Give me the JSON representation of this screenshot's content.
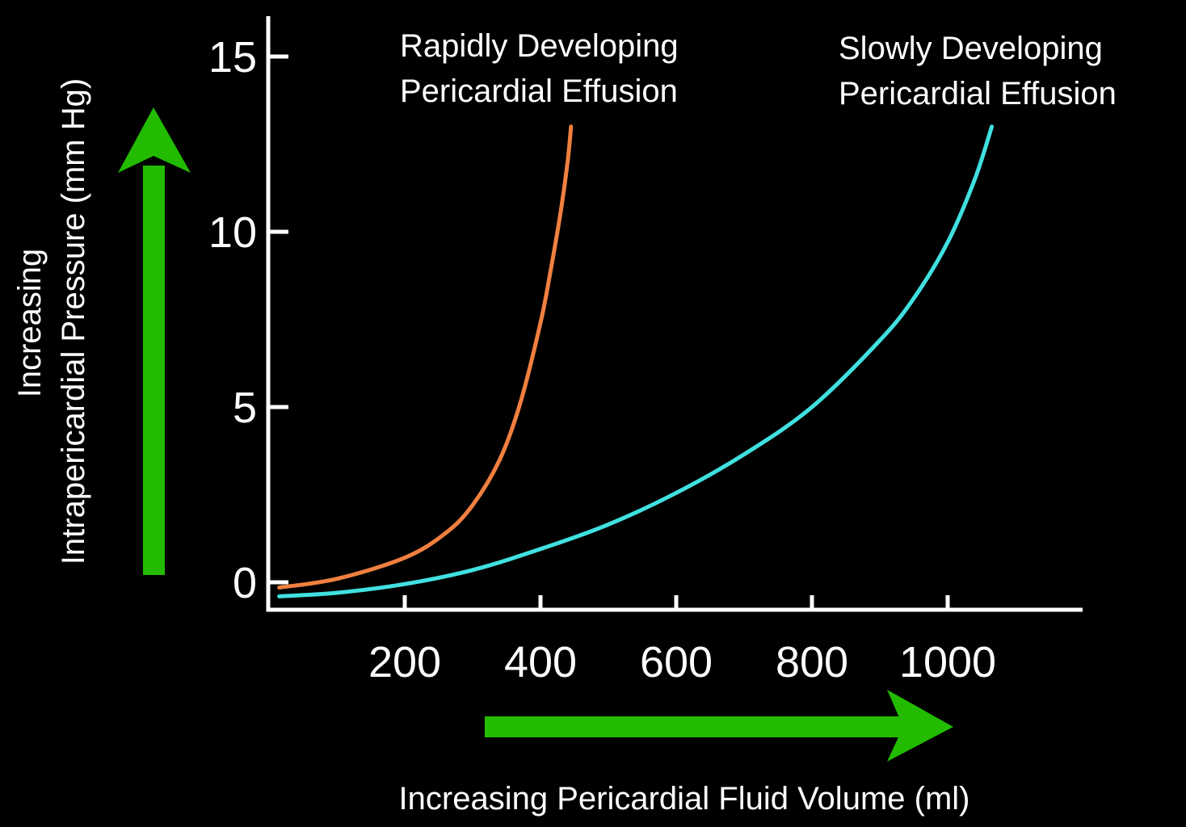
{
  "chart_data": {
    "type": "line",
    "title": "",
    "xlabel": "Increasing Pericardial Fluid Volume (ml)",
    "ylabel_lines": [
      "Increasing",
      "Intrapericardial Pressure (mm Hg)"
    ],
    "xlim": [
      0,
      1150
    ],
    "ylim": [
      -0.8,
      16
    ],
    "x_ticks": [
      200,
      400,
      600,
      800,
      1000
    ],
    "y_ticks": [
      0,
      5,
      10,
      15
    ],
    "grid": false,
    "legend": "none",
    "colors": {
      "background": "#000000",
      "axis": "#ffffff",
      "arrow": "#22bb00",
      "rapid": "#f08040",
      "slow": "#40e0e0"
    },
    "series": [
      {
        "key": "rapid",
        "annotation_lines": [
          "Rapidly Developing",
          "Pericardial Effusion"
        ],
        "x": [
          15,
          100,
          200,
          260,
          300,
          340,
          370,
          400,
          415,
          430,
          440,
          445
        ],
        "y": [
          -0.15,
          0.1,
          0.7,
          1.4,
          2.2,
          3.5,
          5.1,
          7.4,
          8.9,
          10.6,
          12.0,
          13.0
        ]
      },
      {
        "key": "slow",
        "annotation_lines": [
          "Slowly Developing",
          "Pericardial Effusion"
        ],
        "x": [
          15,
          100,
          200,
          300,
          400,
          500,
          600,
          700,
          800,
          900,
          950,
          1000,
          1040,
          1065
        ],
        "y": [
          -0.4,
          -0.3,
          -0.05,
          0.35,
          0.95,
          1.65,
          2.55,
          3.65,
          5.0,
          6.9,
          8.1,
          9.7,
          11.5,
          13.0
        ]
      }
    ]
  }
}
